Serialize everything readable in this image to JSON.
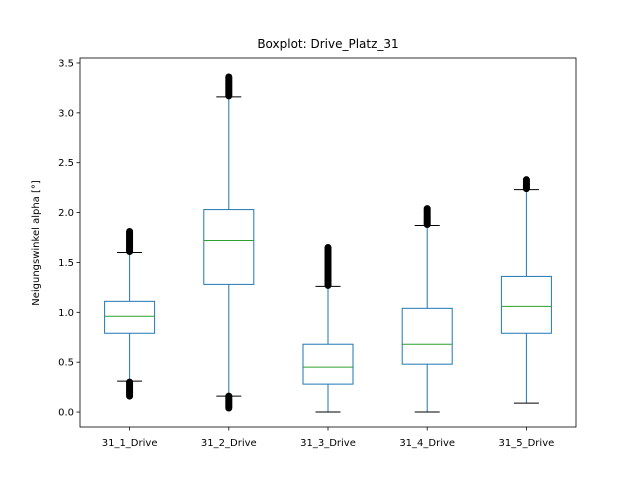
{
  "chart_data": {
    "type": "boxplot",
    "title": "Boxplot: Drive_Platz_31",
    "xlabel": "",
    "ylabel": "Neigungswinkel alpha [°]",
    "ylim": [
      -0.15,
      3.55
    ],
    "yticks": [
      0.0,
      0.5,
      1.0,
      1.5,
      2.0,
      2.5,
      3.0,
      3.5
    ],
    "ytick_labels": [
      "0.0",
      "0.5",
      "1.0",
      "1.5",
      "2.0",
      "2.5",
      "3.0",
      "3.5"
    ],
    "grid": false,
    "colors": {
      "box": "#1f77b4",
      "median": "#2ca02c",
      "whisker_cap": "#000000",
      "flier": "#000000"
    },
    "categories": [
      "31_1_Drive",
      "31_2_Drive",
      "31_3_Drive",
      "31_4_Drive",
      "31_5_Drive"
    ],
    "boxes": [
      {
        "whislo": 0.31,
        "q1": 0.79,
        "med": 0.96,
        "q3": 1.11,
        "whishi": 1.6,
        "fliers_low": [
          0.16,
          0.3
        ],
        "fliers_high": [
          1.61,
          1.81
        ]
      },
      {
        "whislo": 0.16,
        "q1": 1.28,
        "med": 1.72,
        "q3": 2.03,
        "whishi": 3.16,
        "fliers_low": [
          0.04,
          0.16
        ],
        "fliers_high": [
          3.17,
          3.36
        ]
      },
      {
        "whislo": 0.0,
        "q1": 0.28,
        "med": 0.45,
        "q3": 0.68,
        "whishi": 1.26,
        "fliers_low": [],
        "fliers_high": [
          1.27,
          1.65
        ]
      },
      {
        "whislo": 0.0,
        "q1": 0.48,
        "med": 0.68,
        "q3": 1.04,
        "whishi": 1.87,
        "fliers_low": [],
        "fliers_high": [
          1.88,
          2.04
        ]
      },
      {
        "whislo": 0.09,
        "q1": 0.79,
        "med": 1.06,
        "q3": 1.36,
        "whishi": 2.23,
        "fliers_low": [],
        "fliers_high": [
          2.24,
          2.33
        ]
      }
    ]
  }
}
